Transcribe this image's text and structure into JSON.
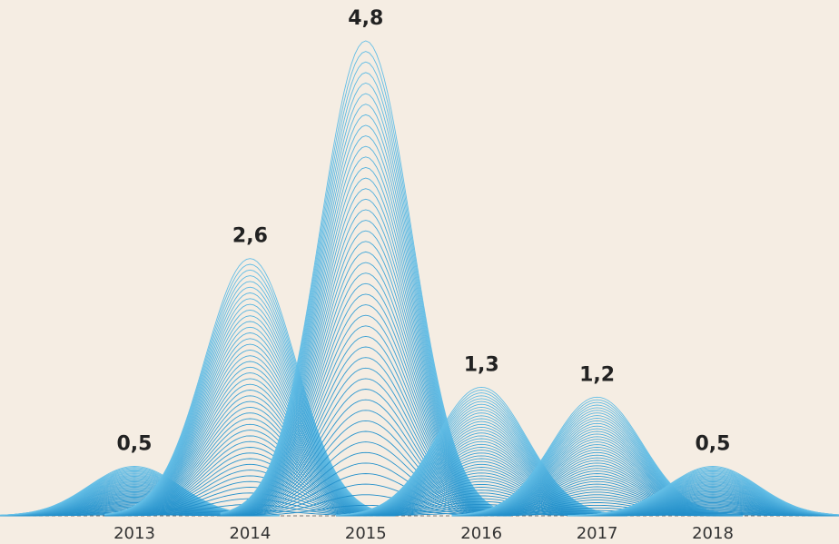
{
  "chart_data": {
    "type": "bell",
    "categories": [
      "2013",
      "2014",
      "2015",
      "2016",
      "2017",
      "2018"
    ],
    "values": [
      0.5,
      2.6,
      4.8,
      1.3,
      1.2,
      0.5
    ],
    "value_labels": [
      "0,5",
      "2,6",
      "4,8",
      "1,3",
      "1,2",
      "0,5"
    ],
    "color": "#1f93c8"
  }
}
